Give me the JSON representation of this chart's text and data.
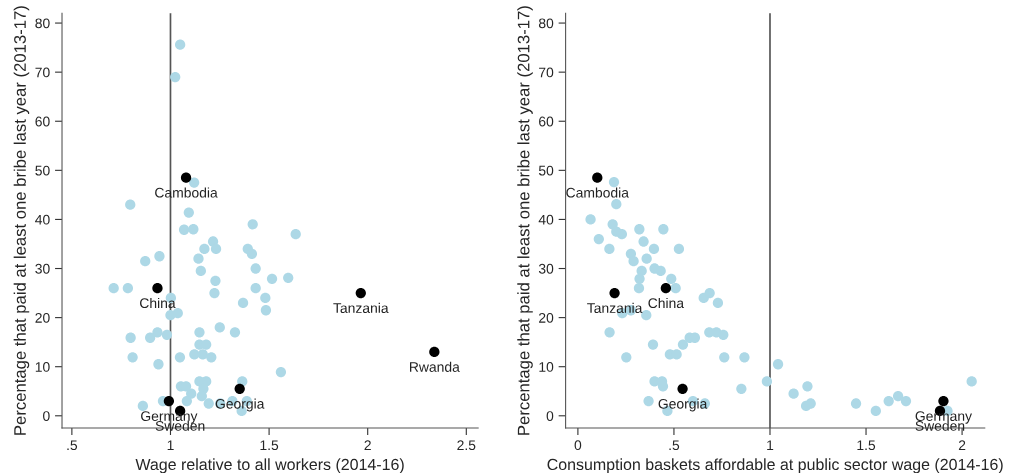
{
  "chart_data": [
    {
      "type": "scatter",
      "xlabel": "Wage relative to all workers (2014-16)",
      "ylabel": "Percentage that paid at least one bribe last year (2013-17)",
      "xlim": [
        0.45,
        2.56
      ],
      "ylim": [
        -2.5,
        82
      ],
      "xticks": [
        {
          "value": 0.5,
          "label": ".5"
        },
        1,
        1.5,
        2,
        2.5
      ],
      "yticks": [
        0,
        10,
        20,
        30,
        40,
        50,
        60,
        70,
        80
      ],
      "grid": false,
      "legend": false,
      "marker": "circle",
      "ref_lines": [
        {
          "axis": "x",
          "value": 1,
          "color": "#555555"
        }
      ],
      "series": [
        {
          "color": "#add8e6",
          "x": [
            1.049,
            1.024,
            1.12,
            0.796,
            1.093,
            1.069,
            1.116,
            1.417,
            1.216,
            1.172,
            1.231,
            1.392,
            1.413,
            0.944,
            0.872,
            1.142,
            1.154,
            1.432,
            1.515,
            1.597,
            1.635,
            1.228,
            1.223,
            1.432,
            1.481,
            1.484,
            1.368,
            0.712,
            0.784,
            1.002,
            1.037,
            1.0,
            1.25,
            1.327,
            1.147,
            0.934,
            0.897,
            0.982,
            0.798,
            1.147,
            1.181,
            0.808,
            1.048,
            1.121,
            1.164,
            1.207,
            0.939,
            1.56,
            1.147,
            1.181,
            1.364,
            1.053,
            1.079,
            1.167,
            1.105,
            1.159,
            0.962,
            1.083,
            1.194,
            1.252,
            1.314,
            1.387,
            0.86,
            1.361
          ],
          "values": [
            75.6,
            69.0,
            47.5,
            43.0,
            41.4,
            37.9,
            38.0,
            39.0,
            35.5,
            34.0,
            34.0,
            34.0,
            33.0,
            32.5,
            31.5,
            32.0,
            29.5,
            30.0,
            27.9,
            28.1,
            37.0,
            27.5,
            25.0,
            26.0,
            24.0,
            21.5,
            23.0,
            26.0,
            26.0,
            24.0,
            20.9,
            20.5,
            18.0,
            17.0,
            17.0,
            17.0,
            15.9,
            16.5,
            15.9,
            14.5,
            14.5,
            11.9,
            11.9,
            12.5,
            12.5,
            11.9,
            10.5,
            8.9,
            7.0,
            7.0,
            7.0,
            6.0,
            6.0,
            5.5,
            4.5,
            4.0,
            3.0,
            3.0,
            2.5,
            2.5,
            3.0,
            3.0,
            2.0,
            1.0
          ]
        },
        {
          "color": "#000000",
          "x": [
            1.079,
            0.934,
            1.351,
            0.992,
            1.049,
            1.965,
            2.338
          ],
          "values": [
            48.5,
            26.0,
            5.5,
            3.0,
            1.0,
            25.0,
            13.0
          ]
        }
      ],
      "annotations": [
        {
          "text": "Cambodia",
          "x": 1.079,
          "y": 48.5
        },
        {
          "text": "China",
          "x": 0.934,
          "y": 26.0
        },
        {
          "text": "Georgia",
          "x": 1.351,
          "y": 5.5
        },
        {
          "text": "Germany",
          "x": 0.992,
          "y": 3.0
        },
        {
          "text": "Sweden",
          "x": 1.049,
          "y": 1.0
        },
        {
          "text": "Tanzania",
          "x": 1.965,
          "y": 25.0
        },
        {
          "text": "Rwanda",
          "x": 2.338,
          "y": 13.0
        }
      ]
    },
    {
      "type": "scatter",
      "xlabel": "Consumption baskets affordable at public sector wage (2014-16)",
      "ylabel": "Percentage that paid at least one bribe last year (2013-17)",
      "xlim": [
        -0.064,
        2.118
      ],
      "ylim": [
        -2.5,
        82
      ],
      "xticks": [
        0,
        {
          "value": 0.5,
          "label": ".5"
        },
        1,
        1.5,
        2
      ],
      "yticks": [
        0,
        10,
        20,
        30,
        40,
        50,
        60,
        70,
        80
      ],
      "grid": false,
      "legend": false,
      "marker": "circle",
      "ref_lines": [
        {
          "axis": "x",
          "value": 1,
          "color": "#555555"
        }
      ],
      "series": [
        {
          "color": "#add8e6",
          "x": [
            0.188,
            0.2,
            0.066,
            0.181,
            0.2,
            0.229,
            0.32,
            0.445,
            0.109,
            0.342,
            0.164,
            0.396,
            0.526,
            0.276,
            0.29,
            0.358,
            0.332,
            0.399,
            0.431,
            0.486,
            0.321,
            0.509,
            0.318,
            0.655,
            0.686,
            0.729,
            0.231,
            0.276,
            0.356,
            0.165,
            0.684,
            0.721,
            0.757,
            0.582,
            0.609,
            0.547,
            0.391,
            0.252,
            0.479,
            0.514,
            0.762,
            0.867,
            1.042,
            0.984,
            0.399,
            0.438,
            0.443,
            0.851,
            0.368,
            0.599,
            0.661,
            0.466,
            1.123,
            1.195,
            1.188,
            1.212,
            1.448,
            1.551,
            1.618,
            1.667,
            1.708,
            1.924,
            2.05
          ],
          "values": [
            47.6,
            43.1,
            40.0,
            39.0,
            37.5,
            37.0,
            38.0,
            38.0,
            36.0,
            35.5,
            34.0,
            34.0,
            34.0,
            33.0,
            31.5,
            32.0,
            29.5,
            30.0,
            29.5,
            27.9,
            27.9,
            26.0,
            26.0,
            24.0,
            25.0,
            23.0,
            20.9,
            21.5,
            20.5,
            17.0,
            17.0,
            17.0,
            16.5,
            15.9,
            15.9,
            14.5,
            14.5,
            11.9,
            12.5,
            12.5,
            11.9,
            11.9,
            10.5,
            7.0,
            7.0,
            7.0,
            6.0,
            5.5,
            3.0,
            3.0,
            2.5,
            1.0,
            4.5,
            6.0,
            2.0,
            2.5,
            2.5,
            1.0,
            3.0,
            4.0,
            3.0,
            1.0,
            7.0
          ]
        },
        {
          "color": "#000000",
          "x": [
            0.101,
            0.458,
            0.191,
            0.545,
            1.903,
            1.885
          ],
          "values": [
            48.5,
            26.0,
            25.0,
            5.5,
            3.0,
            1.0
          ]
        }
      ],
      "annotations": [
        {
          "text": "Cambodia",
          "x": 0.101,
          "y": 48.5
        },
        {
          "text": "China",
          "x": 0.458,
          "y": 26.0
        },
        {
          "text": "Tanzania",
          "x": 0.191,
          "y": 25.0
        },
        {
          "text": "Georgia",
          "x": 0.545,
          "y": 5.5
        },
        {
          "text": "Germany",
          "x": 1.903,
          "y": 3.0
        },
        {
          "text": "Sweden",
          "x": 1.885,
          "y": 1.0
        }
      ]
    }
  ]
}
